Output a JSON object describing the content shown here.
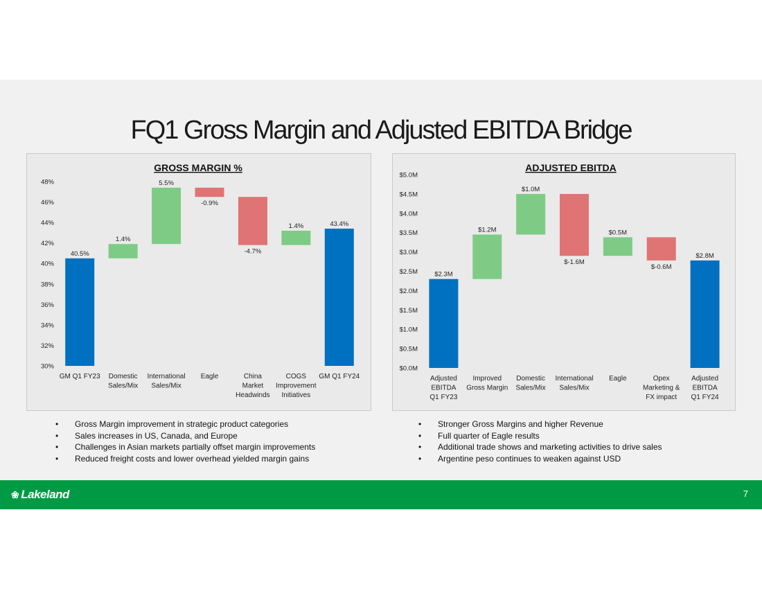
{
  "slide": {
    "title": "FQ1 Gross Margin and Adjusted EBITDA Bridge",
    "page_number": "7",
    "logo_text": "Lakeland",
    "colors": {
      "increase": "#7ecb86",
      "decrease": "#e07474",
      "total": "#0070c0",
      "footer": "#009a44"
    }
  },
  "left_bullets": [
    "Gross Margin improvement in strategic product categories",
    "Sales increases in US, Canada, and Europe",
    "Challenges in Asian markets partially offset margin improvements",
    "Reduced freight costs and lower overhead yielded margin gains"
  ],
  "right_bullets": [
    "Stronger Gross Margins and higher Revenue",
    "Full quarter of Eagle results",
    "Additional trade shows and marketing activities to drive sales",
    "Argentine peso continues to weaken against USD"
  ],
  "chart_data": [
    {
      "type": "bar",
      "subtype": "waterfall",
      "title": "GROSS MARGIN %",
      "categories": [
        [
          "GM Q1 FY23"
        ],
        [
          "Domestic",
          "Sales/Mix"
        ],
        [
          "International",
          "Sales/Mix"
        ],
        [
          "Eagle"
        ],
        [
          "China",
          "Market",
          "Headwinds"
        ],
        [
          "COGS",
          "Improvement",
          "Initiatives"
        ],
        [
          "GM Q1 FY24"
        ]
      ],
      "bars": [
        {
          "kind": "total",
          "low": 30,
          "high": 40.5,
          "label": "40.5%"
        },
        {
          "kind": "increase",
          "low": 40.5,
          "high": 41.9,
          "label": "1.4%"
        },
        {
          "kind": "increase",
          "low": 41.9,
          "high": 47.4,
          "label": "5.5%"
        },
        {
          "kind": "decrease",
          "low": 46.5,
          "high": 47.4,
          "label": "-0.9%"
        },
        {
          "kind": "decrease",
          "low": 41.8,
          "high": 46.5,
          "label": "-4.7%"
        },
        {
          "kind": "increase",
          "low": 41.8,
          "high": 43.2,
          "label": "1.4%"
        },
        {
          "kind": "total",
          "low": 30,
          "high": 43.4,
          "label": "43.4%"
        }
      ],
      "ylim": [
        30,
        48
      ],
      "yticks": [
        30,
        32,
        34,
        36,
        38,
        40,
        42,
        44,
        46,
        48
      ],
      "ytick_labels": [
        "30%",
        "32%",
        "34%",
        "36%",
        "38%",
        "40%",
        "42%",
        "44%",
        "46%",
        "48%"
      ],
      "grid": false
    },
    {
      "type": "bar",
      "subtype": "waterfall",
      "title": "ADJUSTED EBITDA",
      "categories": [
        [
          "Adjusted",
          "EBITDA",
          "Q1 FY23"
        ],
        [
          "Improved",
          "Gross Margin"
        ],
        [
          "Domestic",
          "Sales/Mix"
        ],
        [
          "International",
          "Sales/Mix"
        ],
        [
          "Eagle"
        ],
        [
          "Opex",
          "Marketing &",
          "FX impact"
        ],
        [
          "Adjusted",
          "EBITDA",
          "Q1 FY24"
        ]
      ],
      "bars": [
        {
          "kind": "total",
          "low": 0,
          "high": 2.3,
          "label": "$2.3M"
        },
        {
          "kind": "increase",
          "low": 2.3,
          "high": 3.45,
          "label": "$1.2M"
        },
        {
          "kind": "increase",
          "low": 3.45,
          "high": 4.5,
          "label": "$1.0M"
        },
        {
          "kind": "decrease",
          "low": 2.9,
          "high": 4.5,
          "label": "$-1.6M"
        },
        {
          "kind": "increase",
          "low": 2.9,
          "high": 3.38,
          "label": "$0.5M"
        },
        {
          "kind": "decrease",
          "low": 2.78,
          "high": 3.38,
          "label": "$-0.6M"
        },
        {
          "kind": "total",
          "low": 0,
          "high": 2.78,
          "label": "$2.8M"
        }
      ],
      "ylim": [
        0,
        5
      ],
      "yticks": [
        0,
        0.5,
        1,
        1.5,
        2,
        2.5,
        3,
        3.5,
        4,
        4.5,
        5
      ],
      "ytick_labels": [
        "$0.0M",
        "$0.5M",
        "$1.0M",
        "$1.5M",
        "$2.0M",
        "$2.5M",
        "$3.0M",
        "$3.5M",
        "$4.0M",
        "$4.5M",
        "$5.0M"
      ],
      "grid": false
    }
  ]
}
